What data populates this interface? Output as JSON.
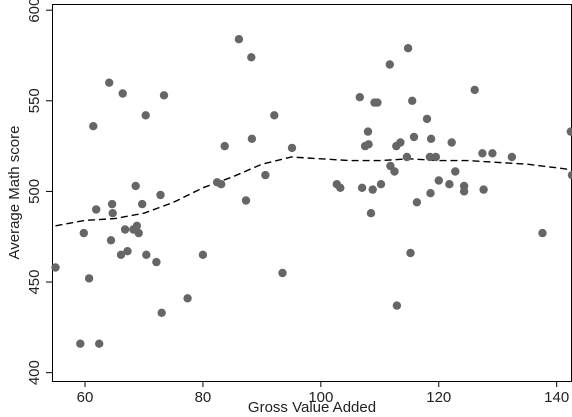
{
  "chart_data": {
    "type": "scatter",
    "xlabel": "Gross Value Added",
    "ylabel": "Average Math score",
    "xlim": [
      54.4,
      142.6
    ],
    "ylim": [
      395.4,
      603.4
    ],
    "xticks": [
      "60",
      "80",
      "100",
      "120",
      "140"
    ],
    "yticks": [
      "400",
      "450",
      "500",
      "550",
      "600"
    ],
    "grid": false,
    "colors": {
      "points": "#666666",
      "fit_line": "#000000",
      "axis": "#000000"
    },
    "series": [
      {
        "type": "scatter",
        "points": [
          [
            55.0,
            458
          ],
          [
            59.2,
            416
          ],
          [
            59.8,
            477
          ],
          [
            60.7,
            452
          ],
          [
            61.4,
            536
          ],
          [
            61.9,
            490
          ],
          [
            62.4,
            416
          ],
          [
            64.1,
            560
          ],
          [
            64.4,
            473
          ],
          [
            64.6,
            493
          ],
          [
            64.7,
            488
          ],
          [
            66.1,
            465
          ],
          [
            66.4,
            554
          ],
          [
            66.8,
            479
          ],
          [
            67.2,
            467
          ],
          [
            68.2,
            479
          ],
          [
            68.6,
            503
          ],
          [
            68.8,
            481
          ],
          [
            69.1,
            477
          ],
          [
            69.7,
            493
          ],
          [
            70.3,
            542
          ],
          [
            70.4,
            465
          ],
          [
            72.1,
            461
          ],
          [
            72.8,
            498
          ],
          [
            73.0,
            433
          ],
          [
            73.4,
            553
          ],
          [
            77.4,
            441
          ],
          [
            80.0,
            465
          ],
          [
            82.4,
            505
          ],
          [
            83.1,
            504
          ],
          [
            83.7,
            525
          ],
          [
            86.1,
            584
          ],
          [
            87.3,
            495
          ],
          [
            88.2,
            574
          ],
          [
            88.3,
            529
          ],
          [
            90.6,
            509
          ],
          [
            92.1,
            542
          ],
          [
            93.5,
            455
          ],
          [
            95.1,
            524
          ],
          [
            102.7,
            504
          ],
          [
            103.3,
            502
          ],
          [
            106.6,
            552
          ],
          [
            107.0,
            502
          ],
          [
            107.5,
            525
          ],
          [
            108.0,
            533
          ],
          [
            108.1,
            526
          ],
          [
            108.5,
            488
          ],
          [
            108.8,
            501
          ],
          [
            109.1,
            549
          ],
          [
            109.6,
            549
          ],
          [
            110.2,
            504
          ],
          [
            111.7,
            570
          ],
          [
            111.8,
            514
          ],
          [
            112.5,
            511
          ],
          [
            112.8,
            525
          ],
          [
            112.9,
            437
          ],
          [
            113.5,
            527
          ],
          [
            114.6,
            519
          ],
          [
            114.8,
            579
          ],
          [
            115.2,
            466
          ],
          [
            115.5,
            550
          ],
          [
            115.8,
            530
          ],
          [
            116.3,
            494
          ],
          [
            118.0,
            540
          ],
          [
            118.5,
            519
          ],
          [
            118.6,
            499
          ],
          [
            118.7,
            529
          ],
          [
            119.5,
            519
          ],
          [
            120.0,
            506
          ],
          [
            121.8,
            504
          ],
          [
            122.2,
            527
          ],
          [
            122.8,
            511
          ],
          [
            124.3,
            500
          ],
          [
            124.3,
            503
          ],
          [
            126.1,
            556
          ],
          [
            127.4,
            521
          ],
          [
            127.6,
            501
          ],
          [
            129.1,
            521
          ],
          [
            132.4,
            519
          ],
          [
            137.6,
            477
          ],
          [
            142.4,
            533
          ],
          [
            142.6,
            509
          ]
        ]
      },
      {
        "type": "line",
        "style": "dashed",
        "points": [
          [
            55.0,
            481
          ],
          [
            60.0,
            484
          ],
          [
            65.0,
            485
          ],
          [
            70.0,
            488
          ],
          [
            75.0,
            494
          ],
          [
            80.0,
            502
          ],
          [
            85.0,
            508
          ],
          [
            90.0,
            515
          ],
          [
            95.0,
            519
          ],
          [
            100.0,
            518
          ],
          [
            105.0,
            517
          ],
          [
            110.0,
            517
          ],
          [
            115.0,
            518
          ],
          [
            120.0,
            517
          ],
          [
            125.0,
            517
          ],
          [
            130.0,
            516
          ],
          [
            135.0,
            515
          ],
          [
            140.0,
            513
          ],
          [
            142.5,
            512
          ]
        ]
      }
    ]
  }
}
